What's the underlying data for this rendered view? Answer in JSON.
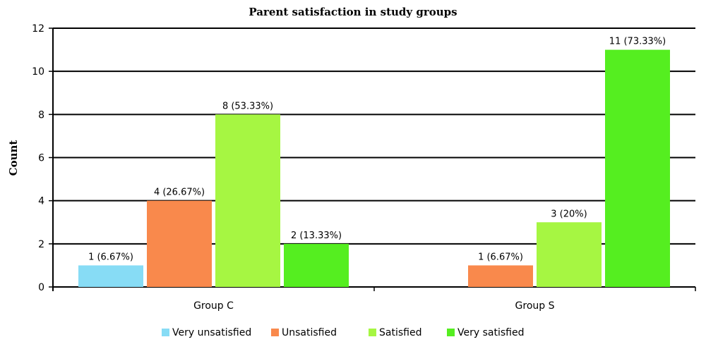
{
  "chart_data": {
    "type": "bar",
    "title": "Parent satisfaction in study groups",
    "xlabel": "",
    "ylabel": "Count",
    "ylim": [
      0,
      12
    ],
    "yticks": [
      0,
      2,
      4,
      6,
      8,
      10,
      12
    ],
    "grid": true,
    "legend_position": "bottom",
    "categories": [
      "Group C",
      "Group S"
    ],
    "series": [
      {
        "name": "Very unsatisfied",
        "color": "#87dcf5",
        "values": [
          1,
          null
        ],
        "labels": [
          "1 (6.67%)",
          ""
        ]
      },
      {
        "name": "Unsatisfied",
        "color": "#f9894c",
        "values": [
          4,
          1
        ],
        "labels": [
          "4 (26.67%)",
          "1 (6.67%)"
        ]
      },
      {
        "name": "Satisfied",
        "color": "#a6f642",
        "values": [
          8,
          3
        ],
        "labels": [
          "8 (53.33%)",
          "3 (20%)"
        ]
      },
      {
        "name": "Very satisfied",
        "color": "#55ee20",
        "values": [
          2,
          11
        ],
        "labels": [
          "2 (13.33%)",
          "11 (73.33%)"
        ]
      }
    ]
  }
}
